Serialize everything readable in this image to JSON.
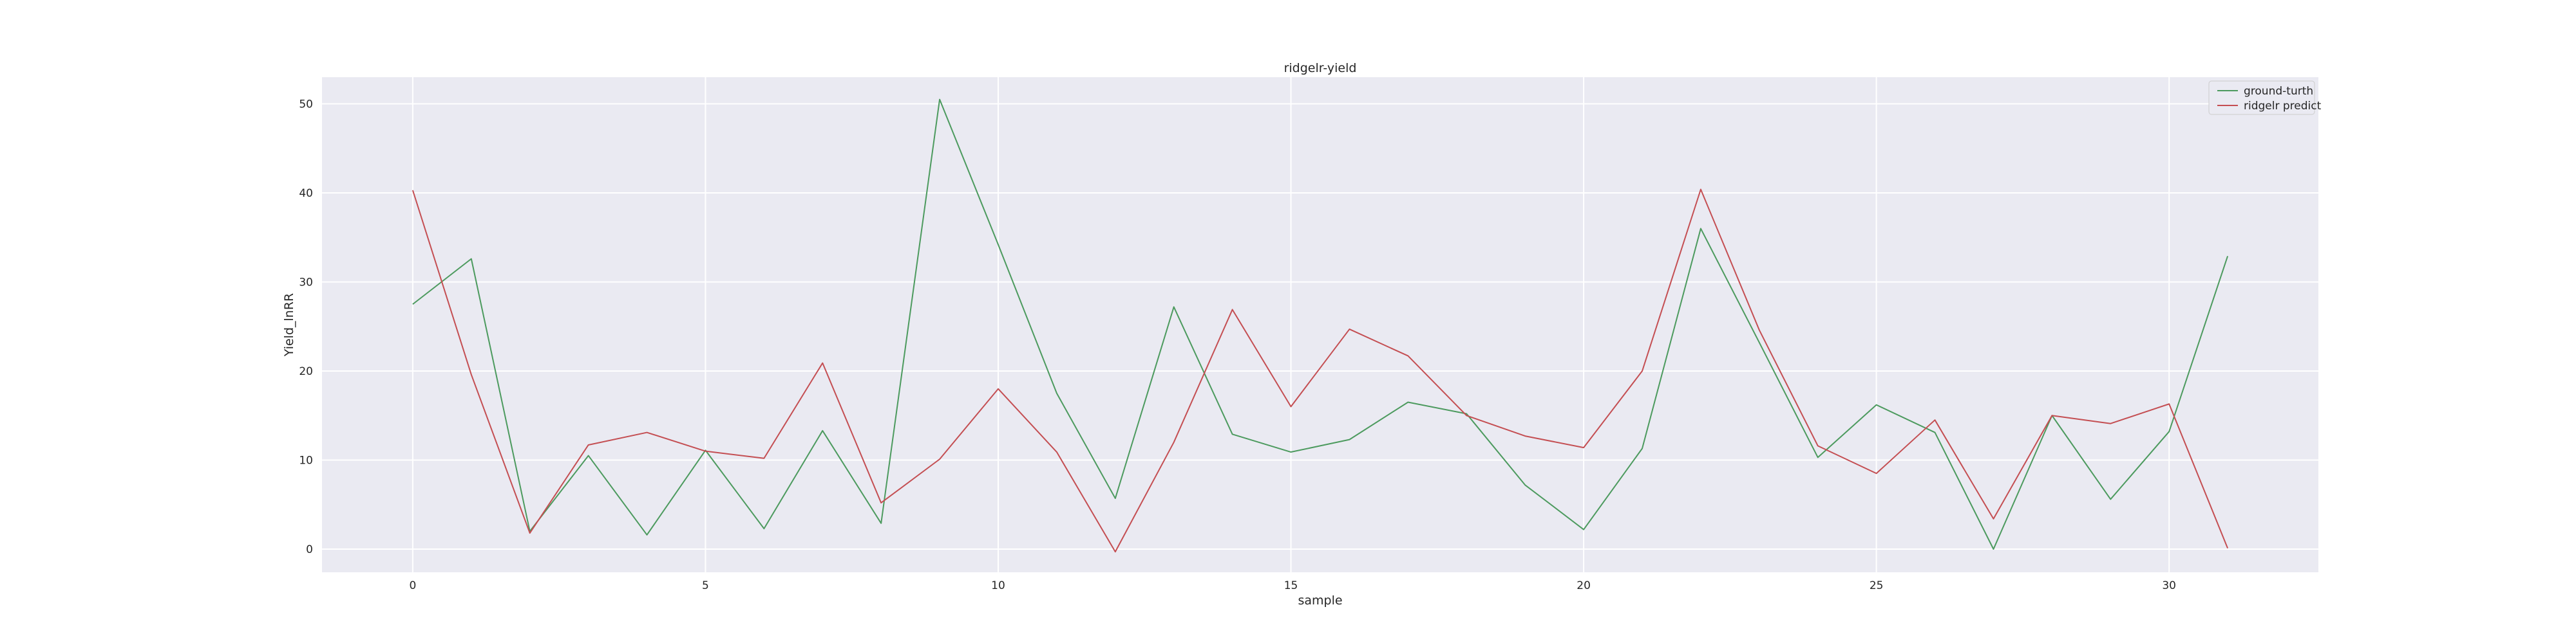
{
  "chart_data": {
    "type": "line",
    "title": "ridgelr-yield",
    "xlabel": "sample",
    "ylabel": "Yield_lnRR",
    "xlim": [
      -1.55,
      32.55
    ],
    "ylim": [
      -2.6,
      53.0
    ],
    "xticks": [
      0,
      5,
      10,
      15,
      20,
      25,
      30
    ],
    "yticks": [
      0,
      10,
      20,
      30,
      40,
      50
    ],
    "grid": true,
    "legend_position": "top-right",
    "x": [
      0,
      1,
      2,
      3,
      4,
      5,
      6,
      7,
      8,
      9,
      10,
      11,
      12,
      13,
      14,
      15,
      16,
      17,
      18,
      19,
      20,
      21,
      22,
      23,
      24,
      25,
      26,
      27,
      28,
      29,
      30,
      31
    ],
    "series": [
      {
        "name": "ground-turth",
        "color": "#4c9a5e",
        "values": [
          27.5,
          32.6,
          2.0,
          10.5,
          1.6,
          11.1,
          2.3,
          13.3,
          2.9,
          50.5,
          34.2,
          17.5,
          5.7,
          27.2,
          12.9,
          10.9,
          12.3,
          16.5,
          15.2,
          7.2,
          2.2,
          11.3,
          36.0,
          23.2,
          10.3,
          16.2,
          13.1,
          0.0,
          15.0,
          5.6,
          13.2,
          32.9
        ]
      },
      {
        "name": "ridgelr predict",
        "color": "#c44e52",
        "values": [
          40.3,
          19.6,
          1.8,
          11.7,
          13.1,
          11.0,
          10.2,
          20.9,
          5.2,
          10.1,
          18.0,
          10.9,
          -0.3,
          12.0,
          26.9,
          16.0,
          24.7,
          21.7,
          15.0,
          12.7,
          11.4,
          20.0,
          40.4,
          24.6,
          11.6,
          8.5,
          14.5,
          3.4,
          15.0,
          14.1,
          16.3,
          0.1
        ]
      }
    ]
  }
}
